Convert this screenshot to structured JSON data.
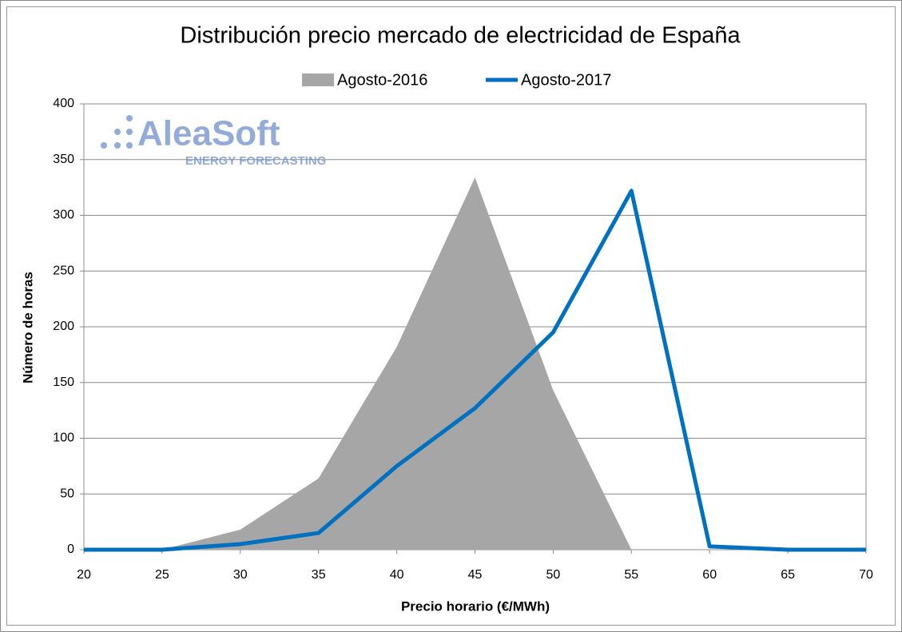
{
  "chart_data": {
    "type": "area_line",
    "title": "Distribución precio mercado de electricidad de España",
    "xlabel": "Precio horario (€/MWh)",
    "ylabel": "Número de horas",
    "logo": {
      "name": "AleaSoft",
      "tagline": "ENERGY FORECASTING"
    },
    "x": [
      20,
      25,
      30,
      35,
      40,
      45,
      50,
      55,
      60,
      65,
      70
    ],
    "series": [
      {
        "name": "Agosto-2016",
        "kind": "area",
        "color": "#a6a6a6",
        "values": [
          0,
          0,
          18,
          64,
          182,
          334,
          143,
          0,
          0,
          0,
          0
        ]
      },
      {
        "name": "Agosto-2017",
        "kind": "line",
        "color": "#0070c0",
        "values": [
          0,
          0,
          5,
          15,
          75,
          127,
          195,
          322,
          3,
          0,
          0
        ]
      }
    ],
    "xlim": [
      20,
      70
    ],
    "xticks": [
      20,
      25,
      30,
      35,
      40,
      45,
      50,
      55,
      60,
      65,
      70
    ],
    "ylim": [
      0,
      400
    ],
    "yticks": [
      0,
      50,
      100,
      150,
      200,
      250,
      300,
      350,
      400
    ],
    "grid": true,
    "legend": "top"
  }
}
